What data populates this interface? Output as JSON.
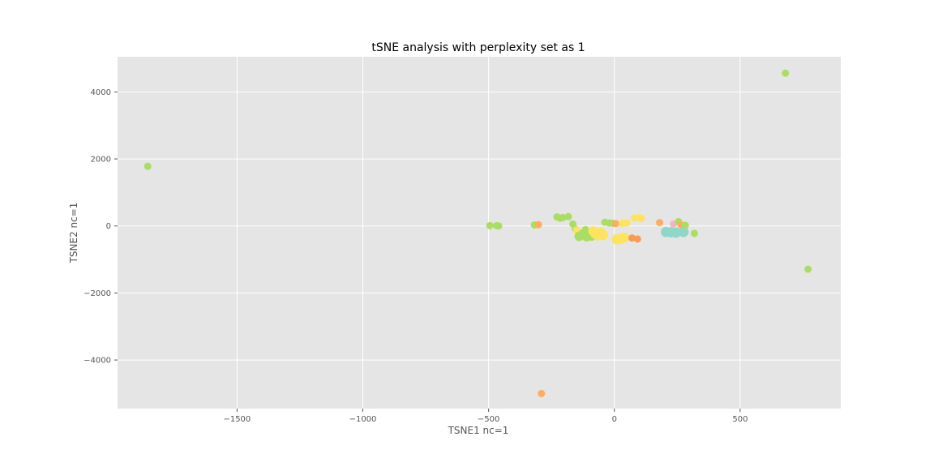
{
  "chart_data": {
    "type": "scatter",
    "title": "tSNE analysis with perplexity set as 1",
    "xlabel": "TSNE1 nc=1",
    "ylabel": "TSNE2 nc=1",
    "xlim": [
      -1975,
      900
    ],
    "ylim": [
      -5450,
      5050
    ],
    "xticks": [
      -1500,
      -1000,
      -500,
      0,
      500
    ],
    "xtick_labels": [
      "−1500",
      "−1000",
      "−500",
      "0",
      "500"
    ],
    "yticks": [
      -4000,
      -2000,
      0,
      2000,
      4000
    ],
    "ytick_labels": [
      "−4000",
      "−2000",
      "0",
      "2000",
      "4000"
    ],
    "grid": true,
    "background": "#e5e5e5",
    "gridColor": "#ffffff",
    "colors": {
      "green": "#abdd63",
      "yellow": "#fee45e",
      "orange": "#fbae5d",
      "deeporange": "#f99b55",
      "teal": "#8ed7c9",
      "pink": "#f4b4c4"
    },
    "points": [
      {
        "x": 680,
        "y": 4560,
        "c": "green",
        "s": 1
      },
      {
        "x": -1855,
        "y": 1780,
        "c": "green",
        "s": 1
      },
      {
        "x": 770,
        "y": -1290,
        "c": "green",
        "s": 1
      },
      {
        "x": -290,
        "y": -5000,
        "c": "orange",
        "s": 1
      },
      {
        "x": -495,
        "y": 10,
        "c": "green",
        "s": 1
      },
      {
        "x": -468,
        "y": 10,
        "c": "green",
        "s": 1
      },
      {
        "x": -460,
        "y": 0,
        "c": "green",
        "s": 1
      },
      {
        "x": -318,
        "y": 30,
        "c": "green",
        "s": 1
      },
      {
        "x": -302,
        "y": 40,
        "c": "orange",
        "s": 1
      },
      {
        "x": -228,
        "y": 270,
        "c": "green",
        "s": 1
      },
      {
        "x": -215,
        "y": 230,
        "c": "green",
        "s": 1
      },
      {
        "x": -205,
        "y": 250,
        "c": "green",
        "s": 1
      },
      {
        "x": -183,
        "y": 280,
        "c": "green",
        "s": 1
      },
      {
        "x": -165,
        "y": 60,
        "c": "green",
        "s": 1
      },
      {
        "x": -155,
        "y": -90,
        "c": "green",
        "s": 1
      },
      {
        "x": -150,
        "y": -120,
        "c": "yellow",
        "s": 1
      },
      {
        "x": -140,
        "y": -310,
        "c": "green",
        "s": 1.3
      },
      {
        "x": -125,
        "y": -240,
        "c": "green",
        "s": 1.3
      },
      {
        "x": -115,
        "y": -110,
        "c": "green",
        "s": 1
      },
      {
        "x": -110,
        "y": -320,
        "c": "green",
        "s": 1.3
      },
      {
        "x": -100,
        "y": -260,
        "c": "green",
        "s": 1.3
      },
      {
        "x": -90,
        "y": -300,
        "c": "green",
        "s": 1.3
      },
      {
        "x": -85,
        "y": -150,
        "c": "yellow",
        "s": 1.3
      },
      {
        "x": -75,
        "y": -230,
        "c": "yellow",
        "s": 1.4
      },
      {
        "x": -65,
        "y": -280,
        "c": "yellow",
        "s": 1.4
      },
      {
        "x": -55,
        "y": -200,
        "c": "yellow",
        "s": 1.4
      },
      {
        "x": -45,
        "y": -270,
        "c": "yellow",
        "s": 1.4
      },
      {
        "x": -38,
        "y": 110,
        "c": "green",
        "s": 1
      },
      {
        "x": -20,
        "y": 90,
        "c": "green",
        "s": 1
      },
      {
        "x": -5,
        "y": 80,
        "c": "green",
        "s": 1
      },
      {
        "x": 5,
        "y": 70,
        "c": "orange",
        "s": 1
      },
      {
        "x": 10,
        "y": -400,
        "c": "yellow",
        "s": 1.4
      },
      {
        "x": 25,
        "y": -380,
        "c": "yellow",
        "s": 1.4
      },
      {
        "x": 38,
        "y": -350,
        "c": "yellow",
        "s": 1.4
      },
      {
        "x": 32,
        "y": 80,
        "c": "yellow",
        "s": 1
      },
      {
        "x": 50,
        "y": 90,
        "c": "yellow",
        "s": 1
      },
      {
        "x": 70,
        "y": -360,
        "c": "deeporange",
        "s": 1
      },
      {
        "x": 80,
        "y": 240,
        "c": "yellow",
        "s": 1
      },
      {
        "x": 92,
        "y": -390,
        "c": "deeporange",
        "s": 1
      },
      {
        "x": 100,
        "y": 250,
        "c": "yellow",
        "s": 1
      },
      {
        "x": 108,
        "y": 220,
        "c": "yellow",
        "s": 1
      },
      {
        "x": 180,
        "y": 100,
        "c": "orange",
        "s": 1
      },
      {
        "x": 205,
        "y": -180,
        "c": "teal",
        "s": 1.4
      },
      {
        "x": 225,
        "y": -190,
        "c": "teal",
        "s": 1.4
      },
      {
        "x": 235,
        "y": 60,
        "c": "pink",
        "s": 1
      },
      {
        "x": 245,
        "y": -200,
        "c": "teal",
        "s": 1.4
      },
      {
        "x": 255,
        "y": 130,
        "c": "green",
        "s": 1
      },
      {
        "x": 265,
        "y": 30,
        "c": "orange",
        "s": 1
      },
      {
        "x": 275,
        "y": -180,
        "c": "teal",
        "s": 1.4
      },
      {
        "x": 282,
        "y": 20,
        "c": "green",
        "s": 1
      },
      {
        "x": 318,
        "y": -220,
        "c": "green",
        "s": 1
      }
    ]
  }
}
